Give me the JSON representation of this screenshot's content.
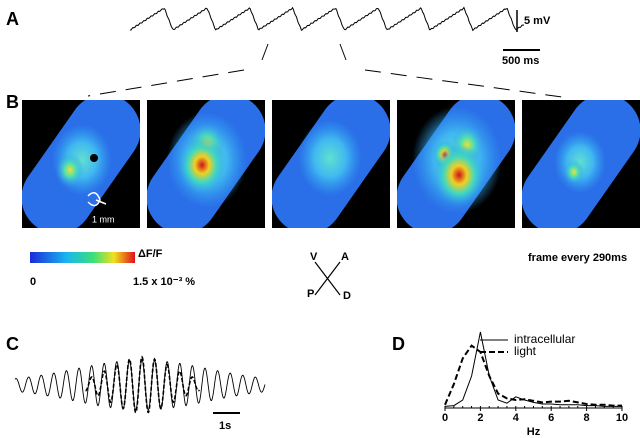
{
  "panels": {
    "a": {
      "label": "A",
      "scale_v": "5 mV",
      "scale_t": "500 ms"
    },
    "b": {
      "label": "B",
      "scale": "1 mm",
      "cbar_low": "0",
      "cbar_title": "ΔF/F",
      "cbar_high": "1.5 x 10⁻³ %",
      "frame_note": "frame every 290ms",
      "compass": {
        "v": "V",
        "a": "A",
        "p": "P",
        "d": "D"
      }
    },
    "c": {
      "label": "C",
      "scale_t": "1s"
    },
    "d": {
      "label": "D"
    }
  },
  "chart_data": {
    "type": "line",
    "xlabel": "Hz",
    "x": [
      0,
      0.5,
      1,
      1.5,
      2,
      2.5,
      3,
      3.5,
      4,
      4.5,
      5,
      5.5,
      6,
      6.5,
      7,
      7.5,
      8,
      8.5,
      9,
      9.5,
      10
    ],
    "series": [
      {
        "name": "intracellular",
        "color": "#000",
        "dash": false,
        "values": [
          2,
          3,
          10,
          40,
          95,
          40,
          10,
          6,
          14,
          10,
          7,
          5,
          5,
          4,
          4,
          4,
          3,
          3,
          2,
          2,
          2
        ]
      },
      {
        "name": "light",
        "color": "#000",
        "dash": true,
        "values": [
          4,
          30,
          62,
          78,
          70,
          40,
          18,
          12,
          10,
          11,
          9,
          7,
          8,
          8,
          9,
          7,
          5,
          4,
          4,
          3,
          3
        ]
      }
    ],
    "xlim": [
      0,
      10
    ],
    "ylim": [
      0,
      100
    ],
    "xticks": [
      0,
      2,
      4,
      6,
      8,
      10
    ]
  }
}
